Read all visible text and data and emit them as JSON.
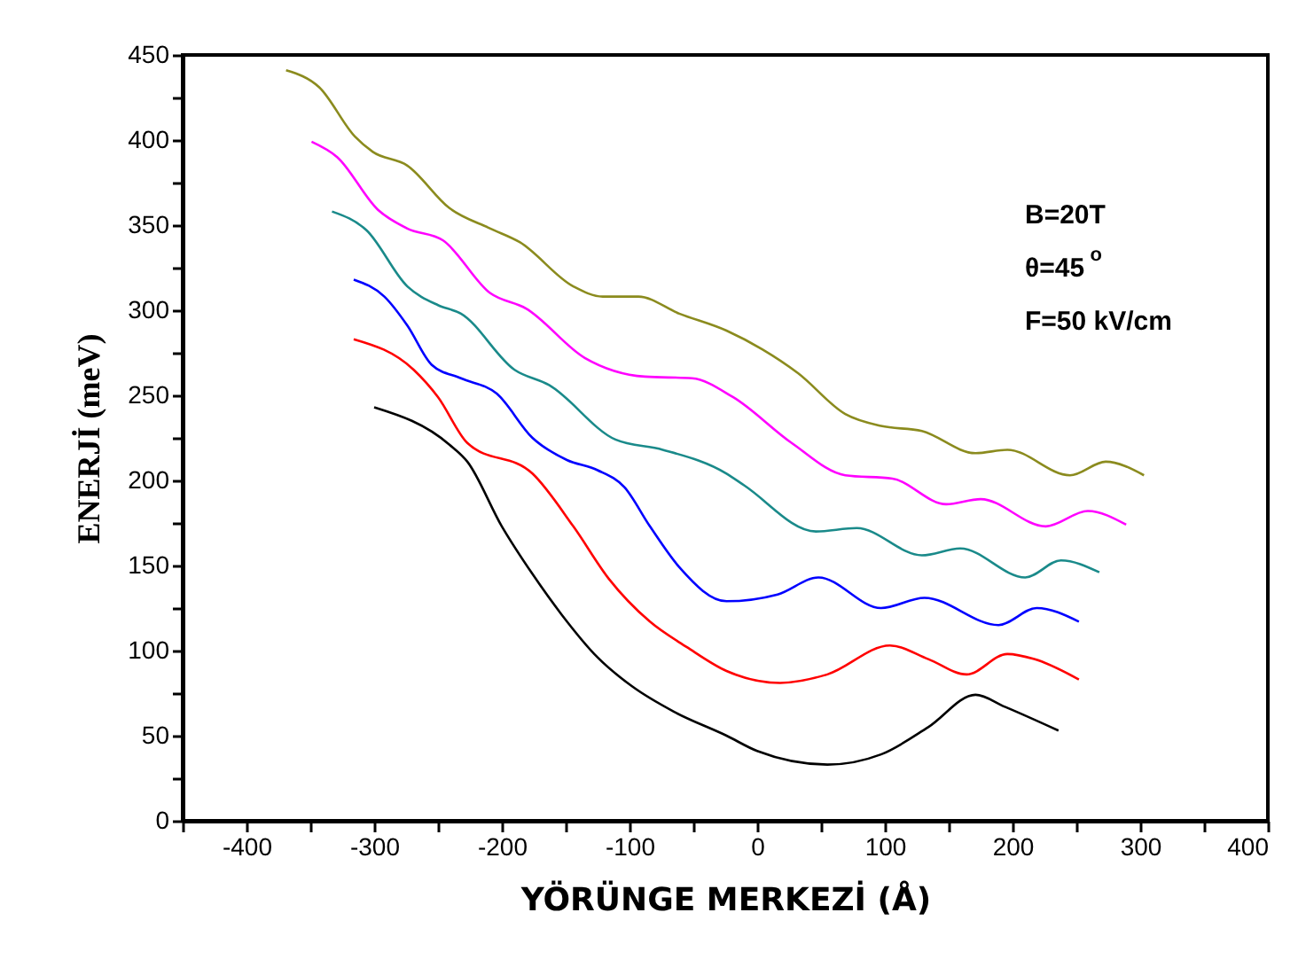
{
  "chart_data": {
    "type": "line",
    "xlabel": "YÖRÜNGE MERKEZİ (Å)",
    "ylabel": "ENERJİ  (meV)",
    "annotations": [
      "B=20T",
      "θ=45$^{o}$",
      "F=50 kV/cm"
    ],
    "xlim": [
      -450,
      400
    ],
    "xticks": [
      {
        "value": -450,
        "label": null
      },
      -400,
      {
        "value": -350,
        "label": null
      },
      -300,
      {
        "value": -250,
        "label": null
      },
      -200,
      {
        "value": -150,
        "label": null
      },
      -100,
      {
        "value": -50,
        "label": null
      },
      0,
      {
        "value": 50,
        "label": null
      },
      100,
      {
        "value": 150,
        "label": null
      },
      200,
      {
        "value": 250,
        "label": null
      },
      300,
      {
        "value": 350,
        "label": null
      },
      400
    ],
    "ylim": [
      0,
      450
    ],
    "yticks": [
      0,
      {
        "value": 25,
        "label": null
      },
      50,
      {
        "value": 75,
        "label": null
      },
      100,
      {
        "value": 125,
        "label": null
      },
      150,
      {
        "value": 175,
        "label": null
      },
      200,
      {
        "value": 225,
        "label": null
      },
      250,
      {
        "value": 275,
        "label": null
      },
      300,
      {
        "value": 325,
        "label": null
      },
      350,
      {
        "value": 375,
        "label": null
      },
      400,
      {
        "value": 425,
        "label": null
      },
      450
    ],
    "grid": false,
    "legend": false,
    "marker": "none",
    "line_style": "solid",
    "series": [
      {
        "color": "#000000",
        "x": [
          -300,
          -241,
          -227,
          -200,
          -176,
          -153,
          -125,
          -98,
          -65,
          -24,
          0,
          55,
          97,
          134,
          171,
          194,
          236
        ],
        "values": [
          243,
          221,
          211,
          173,
          145,
          121,
          96,
          79,
          64,
          50,
          41,
          33,
          39,
          55,
          74,
          67,
          53
        ]
      },
      {
        "color": "#ff0000",
        "x": [
          -316,
          -269,
          -250,
          -227,
          -176,
          -144,
          -116,
          -84,
          -55,
          -24,
          18,
          55,
          104,
          134,
          164,
          196,
          217,
          252
        ],
        "values": [
          283,
          265,
          249,
          222,
          204,
          173,
          142,
          117,
          102,
          88,
          81,
          86,
          103,
          95,
          86,
          98,
          95,
          83
        ]
      },
      {
        "color": "#0000ff",
        "x": [
          -316,
          -292,
          -274,
          -255,
          -232,
          -204,
          -176,
          -149,
          -125,
          -104,
          -84,
          -61,
          -24,
          16,
          48,
          97,
          131,
          189,
          219,
          252
        ],
        "values": [
          318,
          308,
          291,
          268,
          260,
          251,
          225,
          212,
          206,
          196,
          173,
          149,
          129,
          133,
          143,
          125,
          131,
          115,
          125,
          117
        ]
      },
      {
        "color": "#1a8a8a",
        "x": [
          -333,
          -306,
          -274,
          -250,
          -232,
          -190,
          -163,
          -111,
          -74,
          -24,
          -10,
          46,
          78,
          129,
          159,
          210,
          238,
          268
        ],
        "values": [
          358,
          347,
          314,
          303,
          298,
          265,
          256,
          224,
          218,
          204,
          197,
          170,
          172,
          156,
          160,
          143,
          153,
          146
        ]
      },
      {
        "color": "#ff00ff",
        "x": [
          -349,
          -329,
          -297,
          -274,
          -246,
          -209,
          -181,
          -135,
          -88,
          -51,
          -19,
          27,
          69,
          106,
          148,
          175,
          226,
          259,
          289
        ],
        "values": [
          399,
          390,
          359,
          348,
          341,
          310,
          301,
          272,
          261,
          260,
          249,
          222,
          203,
          201,
          186,
          189,
          173,
          182,
          174
        ]
      },
      {
        "color": "#8b8b1e",
        "x": [
          -369,
          -343,
          -315,
          -301,
          -274,
          -241,
          -209,
          -186,
          -144,
          -121,
          -93,
          -61,
          -24,
          4,
          32,
          69,
          97,
          129,
          171,
          196,
          245,
          273,
          303
        ],
        "values": [
          441,
          431,
          402,
          393,
          385,
          360,
          348,
          340,
          314,
          308,
          308,
          298,
          288,
          277,
          263,
          239,
          232,
          229,
          216,
          218,
          203,
          211,
          203
        ]
      }
    ]
  }
}
